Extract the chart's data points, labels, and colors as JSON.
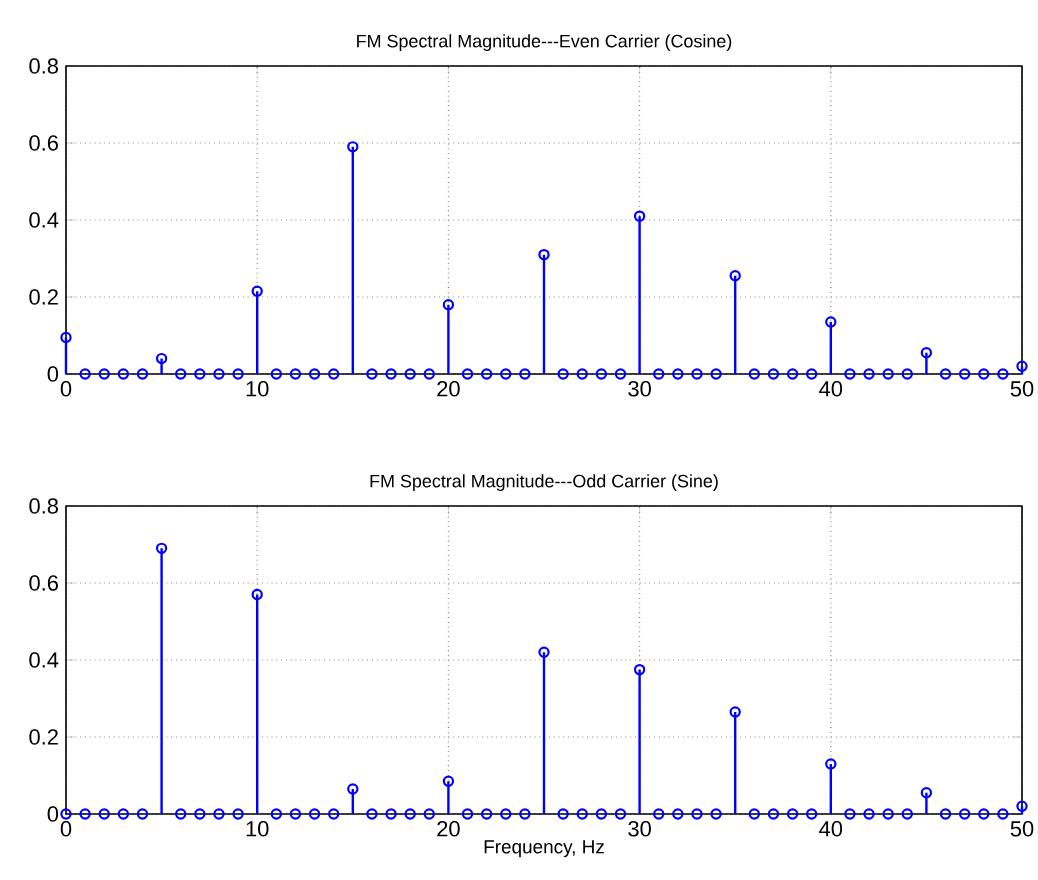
{
  "chart_data": [
    {
      "type": "lollipop",
      "title": "FM Spectral Magnitude---Even Carrier (Cosine)",
      "x": [
        0,
        1,
        2,
        3,
        4,
        5,
        6,
        7,
        8,
        9,
        10,
        11,
        12,
        13,
        14,
        15,
        16,
        17,
        18,
        19,
        20,
        21,
        22,
        23,
        24,
        25,
        26,
        27,
        28,
        29,
        30,
        31,
        32,
        33,
        34,
        35,
        36,
        37,
        38,
        39,
        40,
        41,
        42,
        43,
        44,
        45,
        46,
        47,
        48,
        49,
        50
      ],
      "series": [
        {
          "color": "#0000ff",
          "values": [
            0.095,
            0,
            0,
            0,
            0,
            0.04,
            0,
            0,
            0,
            0,
            0.215,
            0,
            0,
            0,
            0,
            0.59,
            0,
            0,
            0,
            0,
            0.18,
            0,
            0,
            0,
            0,
            0.31,
            0,
            0,
            0,
            0,
            0.41,
            0,
            0,
            0,
            0,
            0.255,
            0,
            0,
            0,
            0,
            0.135,
            0,
            0,
            0,
            0,
            0.055,
            0,
            0,
            0,
            0,
            0.02
          ]
        }
      ],
      "xlim": [
        0,
        50
      ],
      "ylim": [
        0,
        0.8
      ],
      "xticks": [
        0,
        10,
        20,
        30,
        40,
        50
      ],
      "yticks": [
        0,
        0.2,
        0.4,
        0.6,
        0.8
      ],
      "grid": true,
      "marker": "circle"
    },
    {
      "type": "lollipop",
      "title": "FM Spectral Magnitude---Odd Carrier (Sine)",
      "xlabel": "Frequency, Hz",
      "x": [
        0,
        1,
        2,
        3,
        4,
        5,
        6,
        7,
        8,
        9,
        10,
        11,
        12,
        13,
        14,
        15,
        16,
        17,
        18,
        19,
        20,
        21,
        22,
        23,
        24,
        25,
        26,
        27,
        28,
        29,
        30,
        31,
        32,
        33,
        34,
        35,
        36,
        37,
        38,
        39,
        40,
        41,
        42,
        43,
        44,
        45,
        46,
        47,
        48,
        49,
        50
      ],
      "series": [
        {
          "color": "#0000ff",
          "values": [
            0,
            0,
            0,
            0,
            0,
            0.69,
            0,
            0,
            0,
            0,
            0.57,
            0,
            0,
            0,
            0,
            0.065,
            0,
            0,
            0,
            0,
            0.085,
            0,
            0,
            0,
            0,
            0.42,
            0,
            0,
            0,
            0,
            0.375,
            0,
            0,
            0,
            0,
            0.265,
            0,
            0,
            0,
            0,
            0.13,
            0,
            0,
            0,
            0,
            0.055,
            0,
            0,
            0,
            0,
            0.02
          ]
        }
      ],
      "xlim": [
        0,
        50
      ],
      "ylim": [
        0,
        0.8
      ],
      "xticks": [
        0,
        10,
        20,
        30,
        40,
        50
      ],
      "yticks": [
        0,
        0.2,
        0.4,
        0.6,
        0.8
      ],
      "grid": true,
      "marker": "circle"
    }
  ]
}
